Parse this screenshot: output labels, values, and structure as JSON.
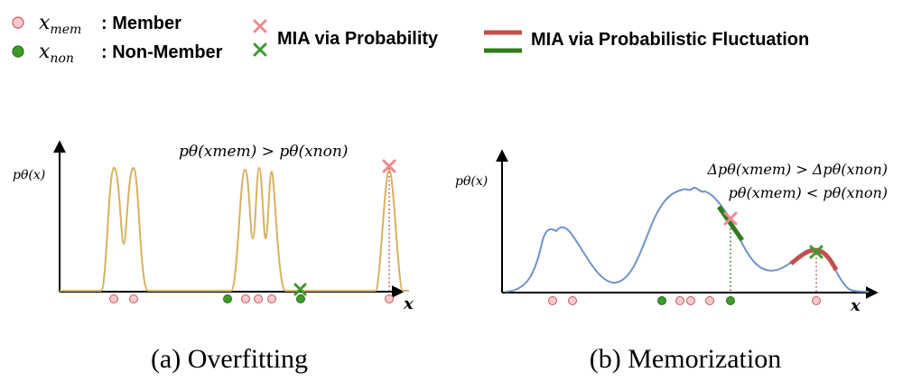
{
  "legend": {
    "member_symbol": "x",
    "member_sub": "mem",
    "member_label": ": Member",
    "non_member_symbol": "x",
    "non_member_sub": "non",
    "non_member_label": ": Non-Member",
    "mia_prob_label": "MIA via Probability",
    "mia_fluct_label": "MIA via Probabilistic Fluctuation"
  },
  "colors": {
    "member_fill": "#f6c9cc",
    "member_stroke": "#c45a5f",
    "non_member_fill": "#3d9a2b",
    "non_member_stroke": "#2a6e1d",
    "mia_prob_cross": "#f08a8f",
    "mia_nonmember_cross": "#3d9a2b",
    "fluct_red": "#c0504d",
    "fluct_green": "#2e7d1a",
    "curve_overfit": "#d6b25e",
    "curve_memor": "#6e93c8",
    "axis": "#000000",
    "dotted_red": "#c0504d",
    "dotted_green": "#2e7d1a"
  },
  "panel_a": {
    "y_axis_label": "pθ(x)",
    "x_axis_label": "x",
    "relation": "pθ(xmem) > pθ(xnon)",
    "caption": "(a) Overfitting"
  },
  "panel_b": {
    "y_axis_label": "pθ(x)",
    "x_axis_label": "x",
    "relation_delta": "Δpθ(xmem) > Δpθ(xnon)",
    "relation_prob": "pθ(xmem) < pθ(xnon)",
    "caption": "(b) Memorization"
  }
}
